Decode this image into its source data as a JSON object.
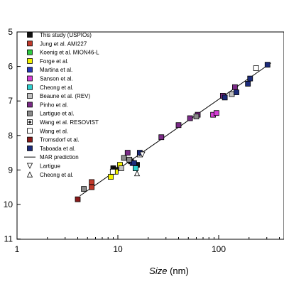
{
  "chart_data": {
    "type": "scatter",
    "title": "",
    "xlabel": "Size",
    "xlabel_unit": " (nm)",
    "ylabel": "",
    "x_scale": "log",
    "xlim": [
      1,
      400
    ],
    "ylim": [
      11,
      5
    ],
    "y_inverted": true,
    "x_ticks": [
      {
        "value": 1,
        "label": "1"
      },
      {
        "value": 10,
        "label": "10"
      },
      {
        "value": 100,
        "label": "100"
      }
    ],
    "y_ticks": [
      {
        "value": 5,
        "label": "5"
      },
      {
        "value": 6,
        "label": "6"
      },
      {
        "value": 7,
        "label": "7"
      },
      {
        "value": 8,
        "label": "8"
      },
      {
        "value": 9,
        "label": "9"
      },
      {
        "value": 10,
        "label": "10"
      },
      {
        "value": 11,
        "label": "11"
      }
    ],
    "grid": false,
    "legend_position": "top-left",
    "series": [
      {
        "name": "This study (USPIOs)",
        "marker": "square",
        "color": "#111111",
        "points": [
          [
            9.0,
            8.95
          ],
          [
            9.5,
            9.0
          ],
          [
            13.5,
            8.75
          ],
          [
            15.5,
            8.85
          ]
        ]
      },
      {
        "name": "Jung et al. AMI227",
        "marker": "square",
        "color": "#c0392b",
        "points": [
          [
            5.5,
            9.35
          ],
          [
            5.5,
            9.5
          ]
        ]
      },
      {
        "name": "Koenig et al. MION46-L",
        "marker": "square",
        "color": "#2ecc40",
        "points": [
          [
            15.0,
            8.95
          ]
        ]
      },
      {
        "name": "Forge et al.",
        "marker": "square",
        "color": "#f2f200",
        "points": [
          [
            8.5,
            9.2
          ],
          [
            9.5,
            9.05
          ],
          [
            10.5,
            8.85
          ]
        ]
      },
      {
        "name": "Martina et al.",
        "marker": "square",
        "color": "#2636b8",
        "points": [
          [
            14.0,
            8.8
          ]
        ]
      },
      {
        "name": "Sanson et al.",
        "marker": "square",
        "color": "#d63fd6",
        "points": [
          [
            88,
            7.4
          ],
          [
            95,
            7.35
          ]
        ]
      },
      {
        "name": "Cheong et al.",
        "marker": "square",
        "color": "#2fd0d0",
        "points": [
          [
            15.0,
            8.95
          ]
        ]
      },
      {
        "name": "Beaune et al. (REV)",
        "marker": "square",
        "color": "#c0c0c0",
        "points": [
          [
            10.8,
            8.95
          ],
          [
            135,
            6.8
          ]
        ]
      },
      {
        "name": "Pinho et al.",
        "marker": "square",
        "color": "#7a2a86",
        "points": [
          [
            12.5,
            8.5
          ],
          [
            27,
            8.05
          ],
          [
            40,
            7.7
          ],
          [
            52,
            7.5
          ],
          [
            62,
            7.4
          ],
          [
            110,
            6.85
          ],
          [
            145,
            6.6
          ]
        ]
      },
      {
        "name": "Lartigue et al.",
        "marker": "square",
        "color": "#8a8a8a",
        "points": [
          [
            4.6,
            9.55
          ],
          [
            11.5,
            8.65
          ],
          [
            13.0,
            8.7
          ],
          [
            60,
            7.45
          ]
        ]
      },
      {
        "name": "Wang et al. RESOVIST",
        "marker": "diamond",
        "color": "#222222",
        "points": [
          [
            16.5,
            8.55
          ]
        ]
      },
      {
        "name": "Wang et al.",
        "marker": "square-open",
        "color": "#ffffff",
        "points": [
          [
            8.9,
            9.05
          ],
          [
            235,
            6.05
          ]
        ]
      },
      {
        "name": "Tromsdorf et al.",
        "marker": "square",
        "color": "#8b1a1a",
        "points": [
          [
            4.0,
            9.85
          ]
        ]
      },
      {
        "name": "Taboada et al.",
        "marker": "square",
        "color": "#1c2b7a",
        "points": [
          [
            14.5,
            8.8
          ],
          [
            16.5,
            8.5
          ],
          [
            115,
            6.9
          ],
          [
            150,
            6.75
          ],
          [
            195,
            6.5
          ],
          [
            205,
            6.35
          ],
          [
            305,
            5.95
          ]
        ]
      },
      {
        "name": "MAR prediction",
        "marker": "line",
        "color": "#000000",
        "line": [
          [
            4.2,
            9.75
          ],
          [
            330,
            5.9
          ]
        ]
      },
      {
        "name": "Lartigue",
        "marker": "triangle-down",
        "color": "#ffffff",
        "points": [
          [
            17.5,
            8.55
          ]
        ]
      },
      {
        "name": "Cheong et al.",
        "marker": "triangle-up",
        "color": "#ffffff",
        "points": [
          [
            15.5,
            9.1
          ]
        ]
      }
    ]
  }
}
